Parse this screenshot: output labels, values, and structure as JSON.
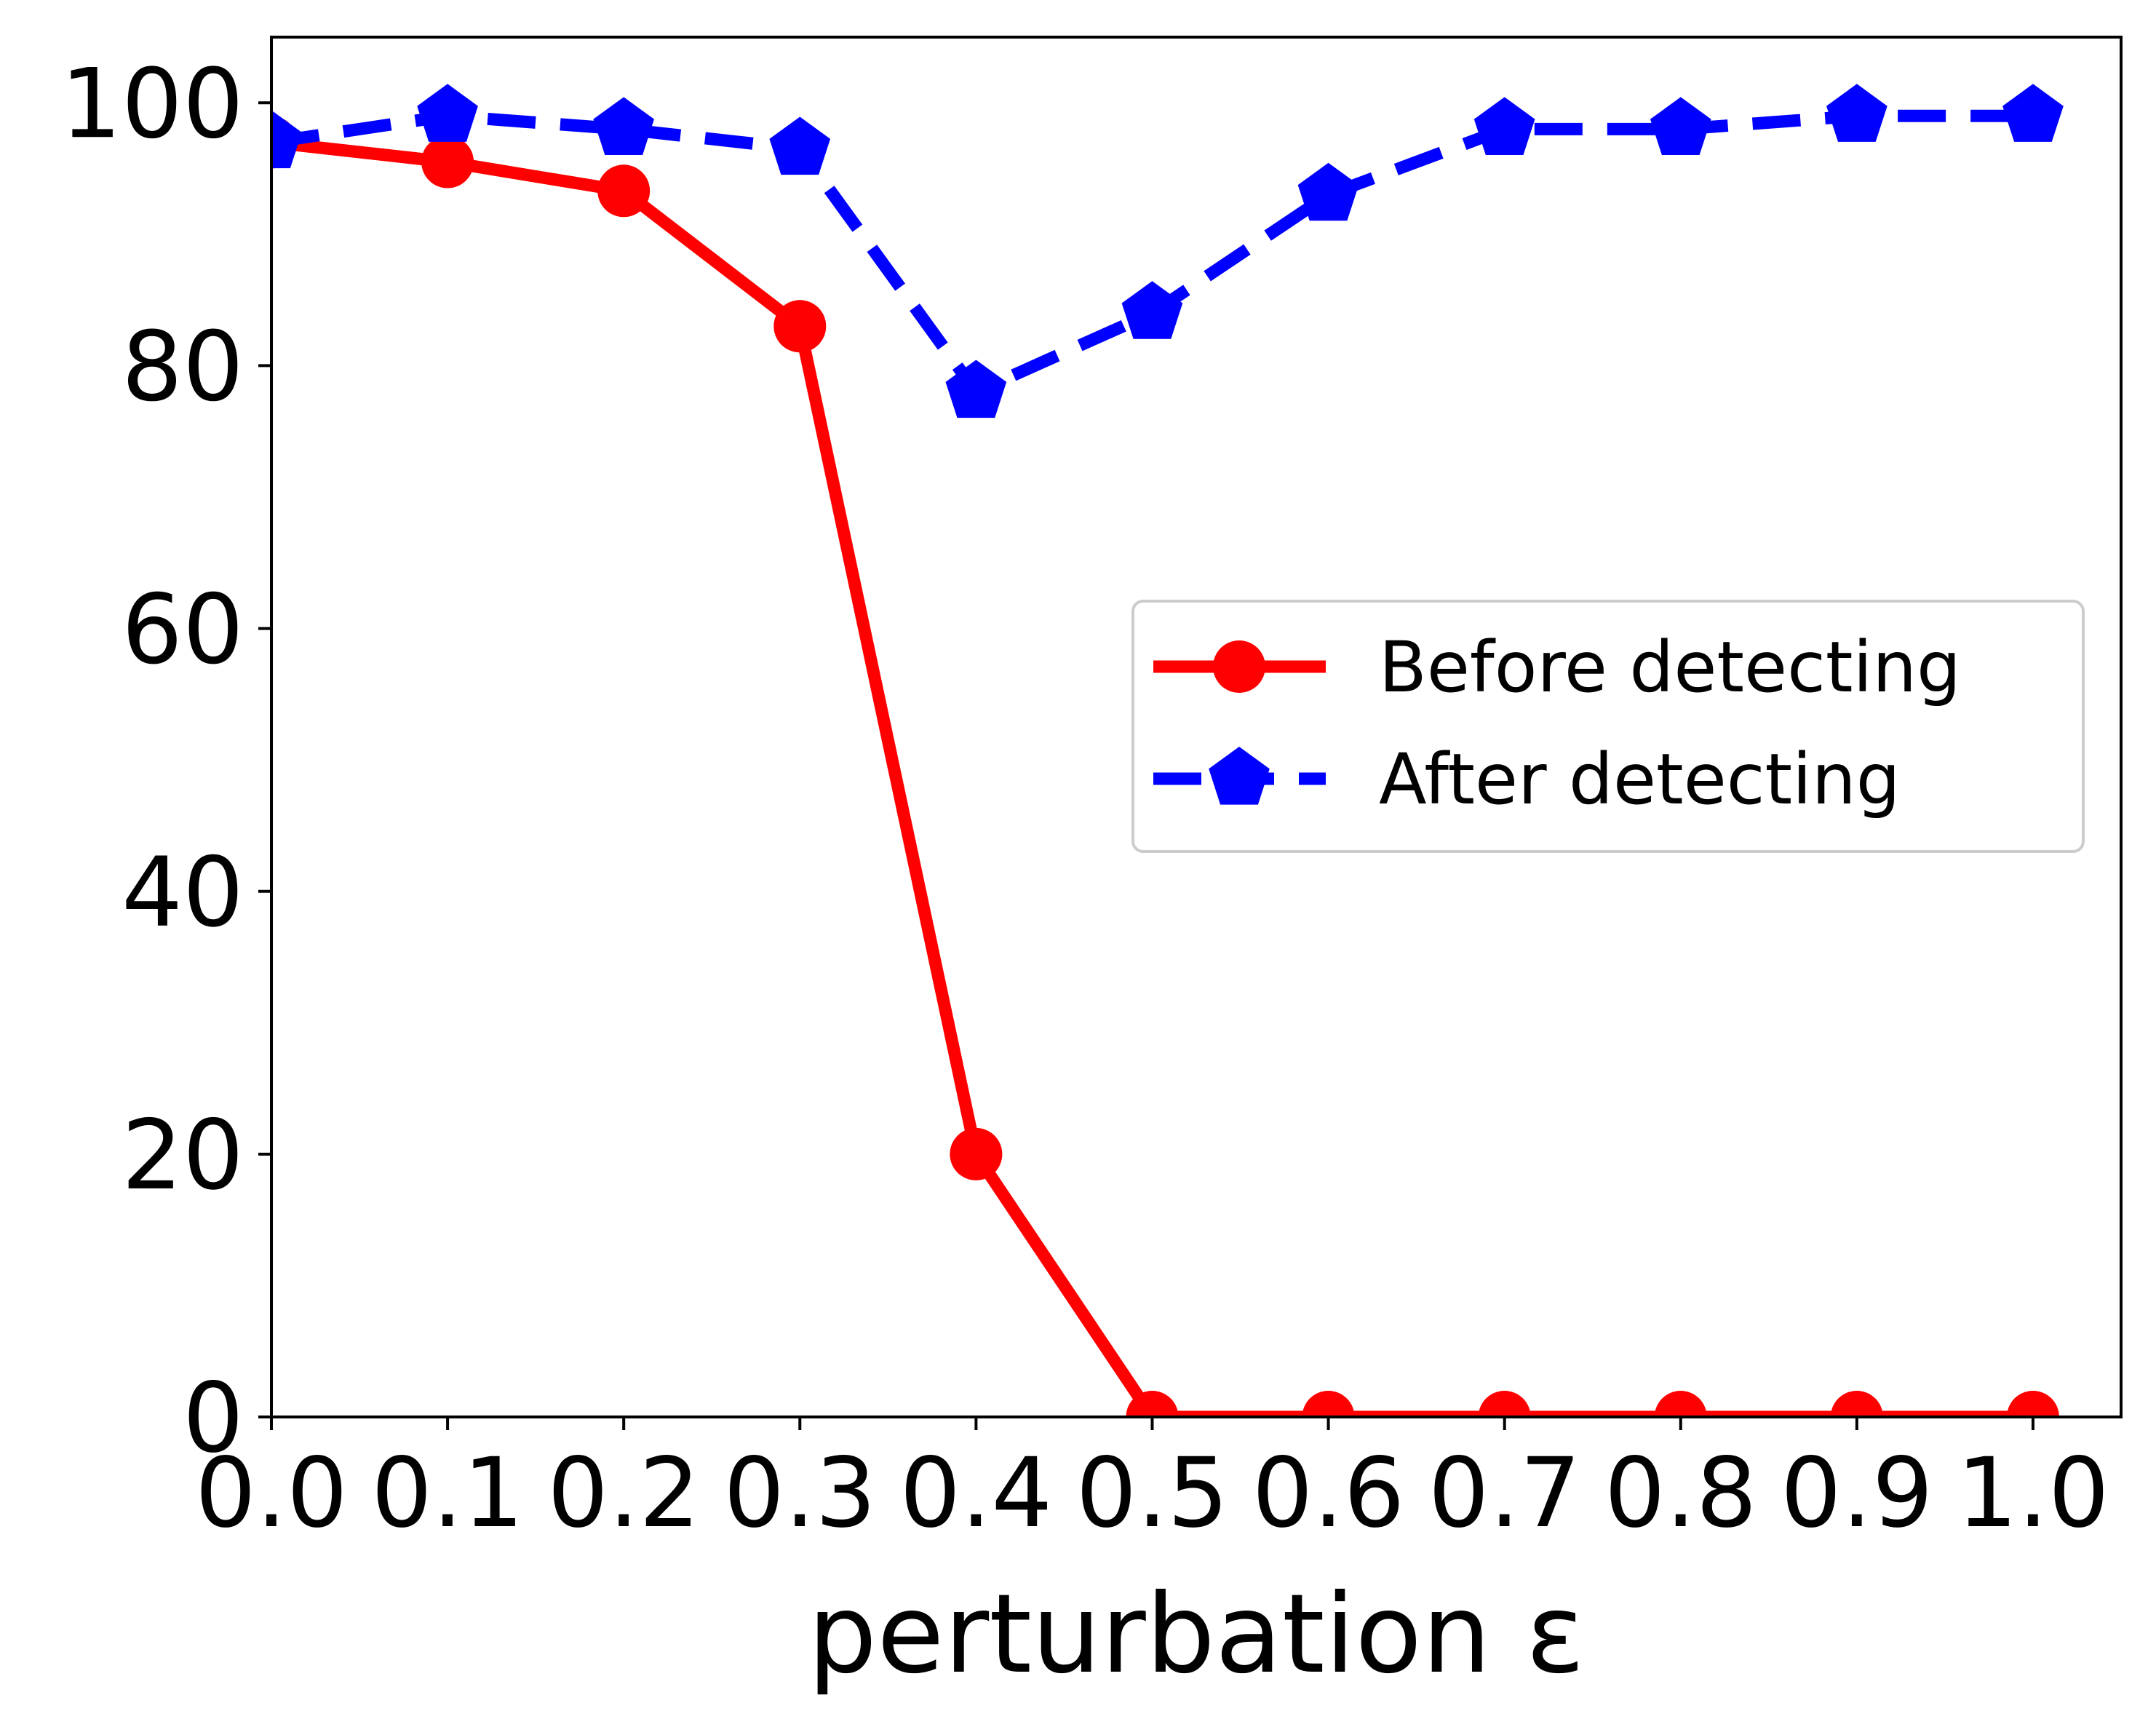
{
  "chart_data": {
    "type": "line",
    "title": "",
    "xlabel": "perturbation ε",
    "ylabel": "",
    "xlim": [
      0.0,
      1.05
    ],
    "ylim": [
      0,
      105
    ],
    "x": [
      0.0,
      0.1,
      0.2,
      0.3,
      0.4,
      0.5,
      0.6,
      0.7,
      0.8,
      0.9,
      1.0
    ],
    "x_tick_labels": [
      "0.0",
      "0.1",
      "0.2",
      "0.3",
      "0.4",
      "0.5",
      "0.6",
      "0.7",
      "0.8",
      "0.9",
      "1.0"
    ],
    "y_ticks": [
      0,
      20,
      40,
      60,
      80,
      100
    ],
    "y_tick_labels": [
      "0",
      "20",
      "40",
      "60",
      "80",
      "100"
    ],
    "grid": false,
    "legend_position": "center-right",
    "series": [
      {
        "name": "Before detecting",
        "color": "#ff0000",
        "line_style": "solid",
        "marker": "circle",
        "values": [
          97,
          95.5,
          93.3,
          83,
          20,
          0,
          0,
          0,
          0,
          0,
          0
        ]
      },
      {
        "name": "After detecting",
        "color": "#0000ff",
        "line_style": "dashed",
        "marker": "pentagon",
        "values": [
          97,
          99,
          98,
          96.5,
          78,
          84,
          93,
          98,
          98,
          99,
          99
        ]
      }
    ]
  }
}
